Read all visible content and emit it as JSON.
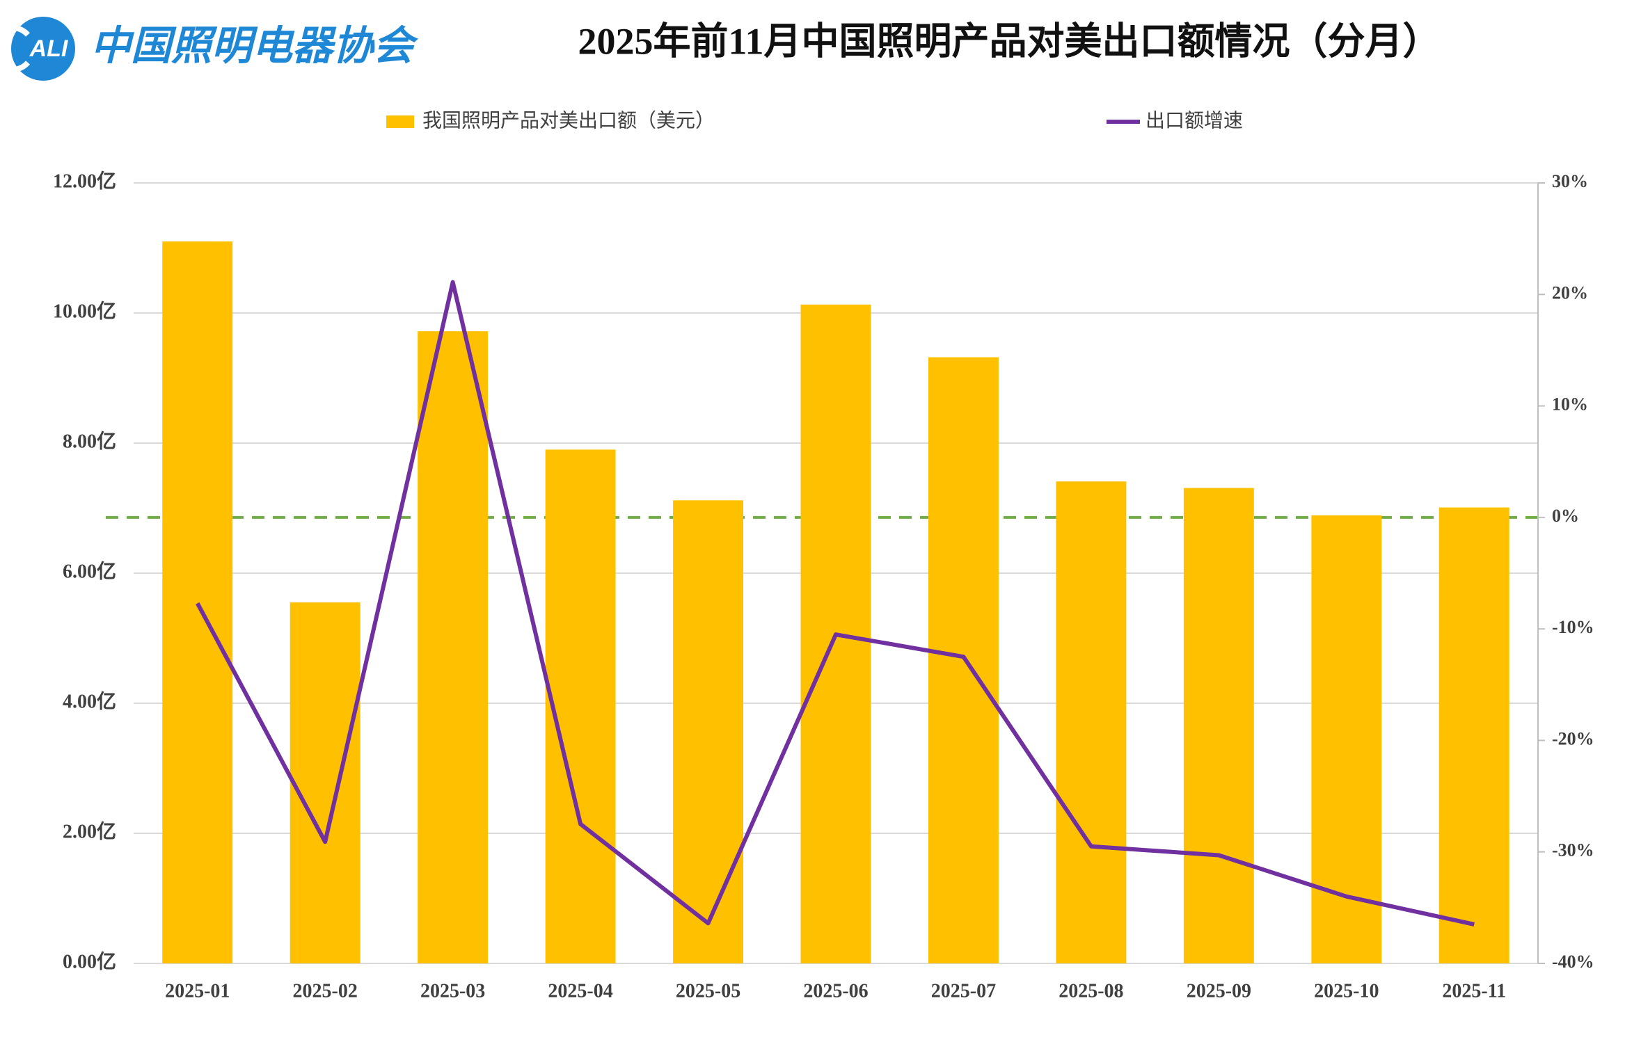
{
  "logo": {
    "mark": "ALI",
    "name": "中国照明电器协会"
  },
  "chart_data": {
    "type": "bar-line",
    "title": "2025年前11月中国照明产品对美出口额情况（分月）",
    "categories": [
      "2025-01",
      "2025-02",
      "2025-03",
      "2025-04",
      "2025-05",
      "2025-06",
      "2025-07",
      "2025-08",
      "2025-09",
      "2025-10",
      "2025-11"
    ],
    "series": [
      {
        "name": "我国照明产品对美出口额（美元）",
        "type": "bar",
        "color": "#ffc000",
        "values": [
          11.1,
          5.55,
          9.72,
          7.9,
          7.12,
          10.13,
          9.32,
          7.41,
          7.31,
          6.89,
          7.01
        ]
      },
      {
        "name": "出口额增速",
        "type": "line",
        "axis": "y2",
        "color": "#7030a0",
        "values": [
          -7.7,
          -29.1,
          21.1,
          -27.5,
          -36.4,
          -10.5,
          -12.5,
          -29.5,
          -30.3,
          -34.0,
          -36.5
        ]
      }
    ],
    "ylim": [
      0,
      12
    ],
    "yticks": [
      {
        "value": 0,
        "label": "0.00亿"
      },
      {
        "value": 2,
        "label": "2.00亿"
      },
      {
        "value": 4,
        "label": "4.00亿"
      },
      {
        "value": 6,
        "label": "6.00亿"
      },
      {
        "value": 8,
        "label": "8.00亿"
      },
      {
        "value": 10,
        "label": "10.00亿"
      },
      {
        "value": 12,
        "label": "12.00亿"
      }
    ],
    "y2lim": [
      -40,
      30
    ],
    "y2ticks": [
      {
        "value": -40,
        "label": "-40%"
      },
      {
        "value": -30,
        "label": "-30%"
      },
      {
        "value": -20,
        "label": "-20%"
      },
      {
        "value": -10,
        "label": "-10%"
      },
      {
        "value": 0,
        "label": "0%"
      },
      {
        "value": 10,
        "label": "10%"
      },
      {
        "value": 20,
        "label": "20%"
      },
      {
        "value": 30,
        "label": "30%"
      }
    ],
    "grid": true,
    "reference_line": {
      "axis": "y2",
      "color": "#70ad47"
    }
  }
}
